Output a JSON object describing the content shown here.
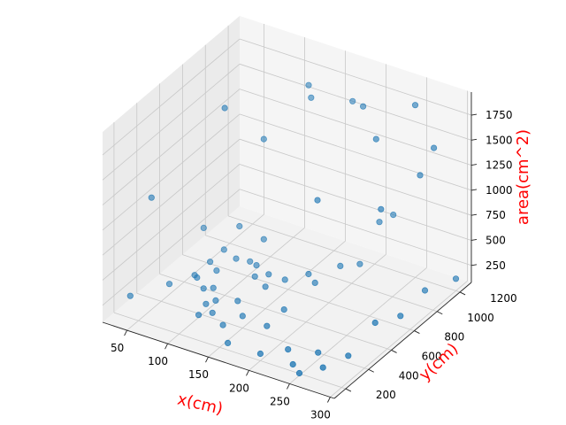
{
  "chart_data": {
    "type": "scatter",
    "projection": "3d",
    "xlabel": "x(cm)",
    "ylabel": "y(cm)",
    "zlabel": "area(cm^2)",
    "label_color": "#ff0000",
    "point_color": "#1f77b4",
    "grid": true,
    "xlim": [
      20,
      305
    ],
    "ylim": [
      100,
      1300
    ],
    "zlim": [
      80,
      1980
    ],
    "x_ticks": [
      50,
      100,
      150,
      200,
      250,
      300
    ],
    "y_ticks": [
      200,
      400,
      600,
      800,
      1000,
      1200
    ],
    "z_ticks": [
      250,
      500,
      750,
      1000,
      1250,
      1500,
      1750
    ],
    "x_tick_labels": [
      "50",
      "100",
      "150",
      "200",
      "250",
      "300"
    ],
    "y_tick_labels": [
      "200",
      "400",
      "600",
      "800",
      "1000",
      "1200"
    ],
    "z_tick_labels": [
      "250",
      "500",
      "750",
      "1000",
      "1250",
      "1500",
      "1750"
    ],
    "points": [
      {
        "x": 45,
        "y": 350,
        "z": 1150
      },
      {
        "x": 100,
        "y": 600,
        "z": 1950
      },
      {
        "x": 40,
        "y": 200,
        "z": 300
      },
      {
        "x": 60,
        "y": 400,
        "z": 280
      },
      {
        "x": 95,
        "y": 450,
        "z": 280
      },
      {
        "x": 110,
        "y": 300,
        "z": 200
      },
      {
        "x": 140,
        "y": 300,
        "z": 180
      },
      {
        "x": 160,
        "y": 200,
        "z": 150
      },
      {
        "x": 200,
        "y": 200,
        "z": 150
      },
      {
        "x": 180,
        "y": 400,
        "z": 180
      },
      {
        "x": 220,
        "y": 300,
        "z": 150
      },
      {
        "x": 240,
        "y": 200,
        "z": 150
      },
      {
        "x": 255,
        "y": 150,
        "z": 150
      },
      {
        "x": 250,
        "y": 350,
        "z": 150
      },
      {
        "x": 270,
        "y": 250,
        "z": 150
      },
      {
        "x": 280,
        "y": 400,
        "z": 150
      },
      {
        "x": 285,
        "y": 600,
        "z": 300
      },
      {
        "x": 295,
        "y": 750,
        "z": 250
      },
      {
        "x": 290,
        "y": 1000,
        "z": 250
      },
      {
        "x": 300,
        "y": 1200,
        "z": 200
      },
      {
        "x": 280,
        "y": 1150,
        "z": 1500
      },
      {
        "x": 270,
        "y": 1100,
        "z": 1250
      },
      {
        "x": 250,
        "y": 1200,
        "z": 1800
      },
      {
        "x": 230,
        "y": 1000,
        "z": 1600
      },
      {
        "x": 200,
        "y": 1100,
        "z": 1750
      },
      {
        "x": 180,
        "y": 1150,
        "z": 1700
      },
      {
        "x": 150,
        "y": 1000,
        "z": 1800
      },
      {
        "x": 140,
        "y": 1050,
        "z": 1850
      },
      {
        "x": 120,
        "y": 800,
        "z": 1500
      },
      {
        "x": 200,
        "y": 700,
        "z": 1200
      },
      {
        "x": 250,
        "y": 900,
        "z": 1050
      },
      {
        "x": 220,
        "y": 1100,
        "z": 650
      },
      {
        "x": 230,
        "y": 1150,
        "z": 700
      },
      {
        "x": 210,
        "y": 1000,
        "z": 300
      },
      {
        "x": 200,
        "y": 900,
        "z": 350
      },
      {
        "x": 190,
        "y": 750,
        "z": 300
      },
      {
        "x": 175,
        "y": 800,
        "z": 300
      },
      {
        "x": 160,
        "y": 700,
        "z": 300
      },
      {
        "x": 150,
        "y": 600,
        "z": 300
      },
      {
        "x": 140,
        "y": 700,
        "z": 300
      },
      {
        "x": 125,
        "y": 700,
        "z": 350
      },
      {
        "x": 130,
        "y": 650,
        "z": 300
      },
      {
        "x": 120,
        "y": 800,
        "z": 500
      },
      {
        "x": 110,
        "y": 750,
        "z": 300
      },
      {
        "x": 100,
        "y": 700,
        "z": 350
      },
      {
        "x": 90,
        "y": 600,
        "z": 300
      },
      {
        "x": 85,
        "y": 700,
        "z": 400
      },
      {
        "x": 75,
        "y": 650,
        "z": 300
      },
      {
        "x": 80,
        "y": 500,
        "z": 300
      },
      {
        "x": 70,
        "y": 550,
        "z": 250
      },
      {
        "x": 120,
        "y": 350,
        "z": 200
      },
      {
        "x": 110,
        "y": 450,
        "z": 200
      },
      {
        "x": 130,
        "y": 500,
        "z": 200
      },
      {
        "x": 150,
        "y": 400,
        "z": 200
      },
      {
        "x": 90,
        "y": 800,
        "z": 550
      },
      {
        "x": 60,
        "y": 700,
        "z": 550
      },
      {
        "x": 180,
        "y": 550,
        "z": 200
      },
      {
        "x": 100,
        "y": 500,
        "z": 250
      },
      {
        "x": 105,
        "y": 400,
        "z": 200
      }
    ]
  }
}
